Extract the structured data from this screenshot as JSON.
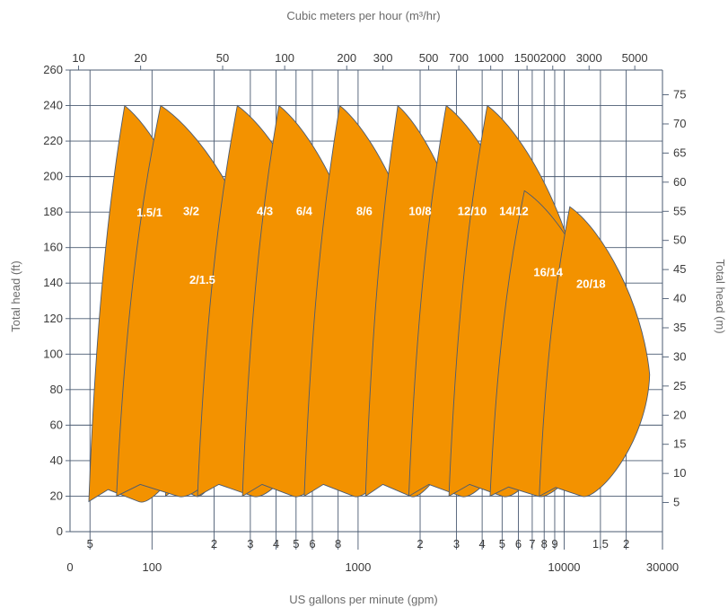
{
  "chart_data": {
    "type": "area",
    "title": "",
    "top_axis_label": "Cubic meters per hour (m³/hr)",
    "bottom_axis_label": "US gallons per minute (gpm)",
    "left_axis_label": "Total head (ft)",
    "right_axis_label": "Total head (m)",
    "x_scale": "log",
    "x_range_gpm": [
      40,
      30000
    ],
    "y_range_ft": [
      0,
      260
    ],
    "fill_color": "#f39200",
    "grid_color": "#4b5b72",
    "gridlines_gpm": [
      50,
      100,
      200,
      300,
      400,
      500,
      600,
      800,
      1000,
      2000,
      3000,
      4000,
      5000,
      6000,
      7000,
      8000,
      9000,
      10000,
      15000,
      20000
    ],
    "bottom_major_ticks": [
      {
        "value": 40,
        "label": "0"
      },
      {
        "value": 100,
        "label": "100"
      },
      {
        "value": 1000,
        "label": "1000"
      },
      {
        "value": 10000,
        "label": "10000"
      },
      {
        "value": 30000,
        "label": "30000"
      }
    ],
    "bottom_minor_ticks": [
      {
        "value": 50,
        "label": "5"
      },
      {
        "value": 200,
        "label": "2"
      },
      {
        "value": 300,
        "label": "3"
      },
      {
        "value": 400,
        "label": "4"
      },
      {
        "value": 500,
        "label": "5"
      },
      {
        "value": 600,
        "label": "6"
      },
      {
        "value": 800,
        "label": "8"
      },
      {
        "value": 2000,
        "label": "2"
      },
      {
        "value": 3000,
        "label": "3"
      },
      {
        "value": 4000,
        "label": "4"
      },
      {
        "value": 5000,
        "label": "5"
      },
      {
        "value": 6000,
        "label": "6"
      },
      {
        "value": 7000,
        "label": "7"
      },
      {
        "value": 8000,
        "label": "8"
      },
      {
        "value": 9000,
        "label": "9"
      },
      {
        "value": 15000,
        "label": "1.5"
      },
      {
        "value": 20000,
        "label": "2"
      }
    ],
    "top_ticks_m3h": [
      "10",
      "20",
      "50",
      "100",
      "200",
      "300",
      "500",
      "700",
      "1000",
      "1500",
      "2000",
      "3000",
      "5000"
    ],
    "left_ticks_ft": [
      0,
      20,
      40,
      60,
      80,
      100,
      120,
      140,
      160,
      180,
      200,
      220,
      240,
      260
    ],
    "right_ticks_m": [
      5,
      10,
      15,
      20,
      25,
      30,
      35,
      40,
      45,
      50,
      55,
      60,
      65,
      70,
      75
    ],
    "pumps": [
      {
        "name": "1.5/1",
        "min_flow_gpm": 45,
        "max_flow_gpm": 210,
        "min_head_ft": 17,
        "max_head_ft": 240
      },
      {
        "name": "2/1.5",
        "min_flow_gpm": 110,
        "max_flow_gpm": 280,
        "min_head_ft": 20,
        "max_head_ft": 186
      },
      {
        "name": "3/2",
        "min_flow_gpm": 60,
        "max_flow_gpm": 400,
        "min_head_ft": 20,
        "max_head_ft": 240
      },
      {
        "name": "4/3",
        "min_flow_gpm": 150,
        "max_flow_gpm": 830,
        "min_head_ft": 20,
        "max_head_ft": 240
      },
      {
        "name": "6/4",
        "min_flow_gpm": 250,
        "max_flow_gpm": 1200,
        "min_head_ft": 20,
        "max_head_ft": 240
      },
      {
        "name": "8/6",
        "min_flow_gpm": 500,
        "max_flow_gpm": 2300,
        "min_head_ft": 20,
        "max_head_ft": 240
      },
      {
        "name": "10/8",
        "min_flow_gpm": 1000,
        "max_flow_gpm": 4000,
        "min_head_ft": 20,
        "max_head_ft": 240
      },
      {
        "name": "12/10",
        "min_flow_gpm": 1600,
        "max_flow_gpm": 8000,
        "min_head_ft": 20,
        "max_head_ft": 240
      },
      {
        "name": "14/12",
        "min_flow_gpm": 2500,
        "max_flow_gpm": 13000,
        "min_head_ft": 20,
        "max_head_ft": 240
      },
      {
        "name": "16/14",
        "min_flow_gpm": 4000,
        "max_flow_gpm": 17500,
        "min_head_ft": 20,
        "max_head_ft": 192
      },
      {
        "name": "20/18",
        "min_flow_gpm": 7000,
        "max_flow_gpm": 26000,
        "min_head_ft": 20,
        "max_head_ft": 183
      }
    ]
  }
}
